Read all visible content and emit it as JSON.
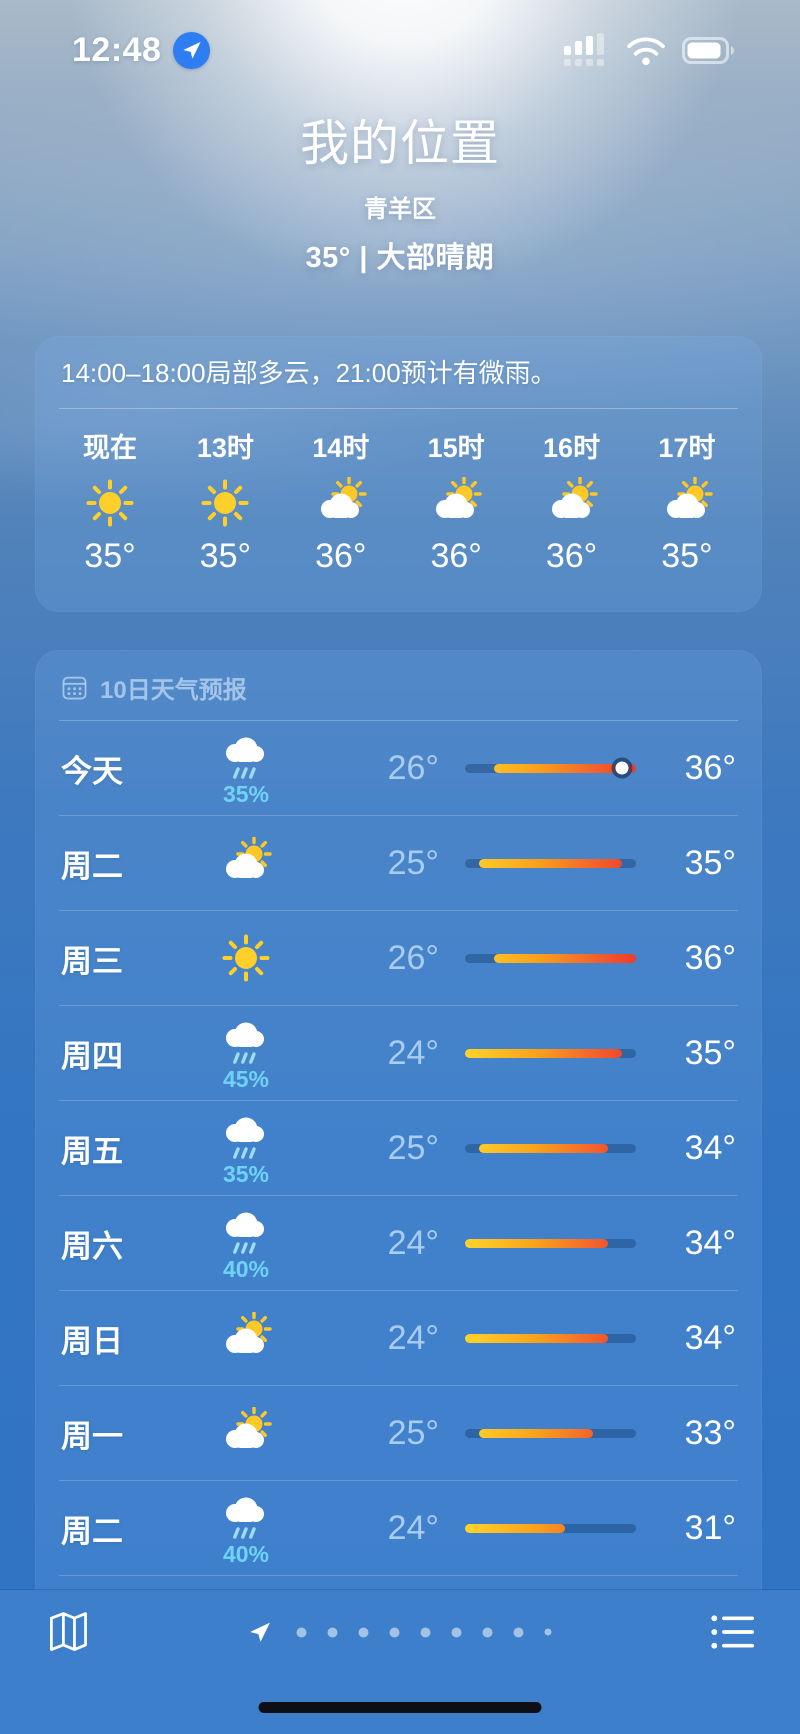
{
  "status_bar": {
    "time": "12:48",
    "location_badge_icon": "location-arrow-icon",
    "location_badge_color": "#2f7df2",
    "signal_icon": "cellular-signal-icon",
    "wifi_icon": "wifi-icon",
    "battery_icon": "battery-icon"
  },
  "header": {
    "title": "我的位置",
    "subtitle": "青羊区",
    "condition_line": "35° | 大部晴朗"
  },
  "hourly": {
    "summary": "14:00–18:00局部多云，21:00预计有微雨。",
    "hours": [
      {
        "label": "现在",
        "icon": "sun",
        "temp": "35°"
      },
      {
        "label": "13时",
        "icon": "sun",
        "temp": "35°"
      },
      {
        "label": "14时",
        "icon": "cloud-sun",
        "temp": "36°"
      },
      {
        "label": "15时",
        "icon": "cloud-sun",
        "temp": "36°"
      },
      {
        "label": "16时",
        "icon": "cloud-sun",
        "temp": "36°"
      },
      {
        "label": "17时",
        "icon": "cloud-sun",
        "temp": "35°"
      }
    ]
  },
  "ten_day": {
    "title": "10日天气预报",
    "title_icon": "calendar-icon",
    "degree_suffix": "°",
    "days": [
      {
        "label": "今天",
        "icon": "cloud-rain",
        "precip": "35%",
        "low": 26,
        "high": 36,
        "current": 35
      },
      {
        "label": "周二",
        "icon": "cloud-sun",
        "low": 25,
        "high": 35
      },
      {
        "label": "周三",
        "icon": "sun",
        "low": 26,
        "high": 36
      },
      {
        "label": "周四",
        "icon": "cloud-rain",
        "precip": "45%",
        "low": 24,
        "high": 35
      },
      {
        "label": "周五",
        "icon": "cloud-rain",
        "precip": "35%",
        "low": 25,
        "high": 34
      },
      {
        "label": "周六",
        "icon": "cloud-rain",
        "precip": "40%",
        "low": 24,
        "high": 34
      },
      {
        "label": "周日",
        "icon": "cloud-sun",
        "low": 24,
        "high": 34
      },
      {
        "label": "周一",
        "icon": "cloud-sun",
        "low": 25,
        "high": 33
      },
      {
        "label": "周二",
        "icon": "cloud-rain",
        "precip": "40%",
        "low": 24,
        "high": 31
      }
    ],
    "partial_next_row_icon": "cloud-rain",
    "colors": {
      "low_temp": "#a9cdf1",
      "high_temp": "#ffffff",
      "precip": "#6fd3f7",
      "bar_gradient": [
        "#ffd42a",
        "#f9a11b",
        "#f4692a",
        "#ee3c2d"
      ],
      "bar_track": "rgba(12,48,95,0.35)"
    }
  },
  "tab_bar": {
    "map_icon": "map-icon",
    "list_icon": "list-icon",
    "page_indicator": {
      "current_icon": "location-arrow-icon",
      "dot_count": 9
    }
  }
}
